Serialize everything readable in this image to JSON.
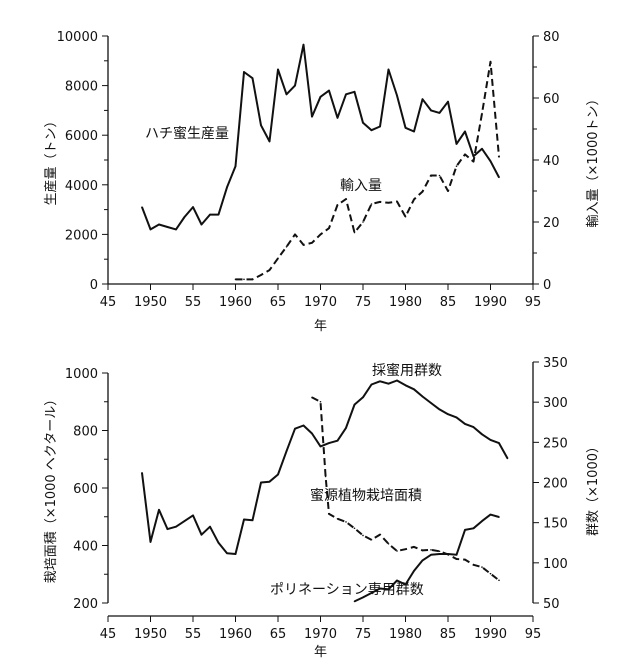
{
  "chart_data": [
    {
      "type": "line",
      "title": "",
      "xlabel": "年",
      "ylabel": "生産量（トン）",
      "y2label": "輸入量（×1000トン）",
      "xlim": [
        1945,
        1995
      ],
      "ylim": [
        0,
        10000
      ],
      "y2lim": [
        0,
        80
      ],
      "xticks": [
        "45",
        "1950",
        "55",
        "1960",
        "65",
        "1970",
        "75",
        "1980",
        "85",
        "1990",
        "95"
      ],
      "yticks": [
        "0",
        "2000",
        "4000",
        "6000",
        "8000",
        "10000"
      ],
      "y2ticks": [
        "0",
        "20",
        "40",
        "60",
        "80"
      ],
      "grid": false,
      "series": [
        {
          "name": "ハチ蜜生産量",
          "axis": "left",
          "style": "solid",
          "x": [
            1949,
            1950,
            1951,
            1952,
            1953,
            1954,
            1955,
            1956,
            1957,
            1958,
            1959,
            1960,
            1961,
            1962,
            1963,
            1964,
            1965,
            1966,
            1967,
            1968,
            1969,
            1970,
            1971,
            1972,
            1973,
            1974,
            1975,
            1976,
            1977,
            1978,
            1979,
            1980,
            1981,
            1982,
            1983,
            1984,
            1985,
            1986,
            1987,
            1988,
            1989,
            1990,
            1991
          ],
          "y": [
            3100,
            2200,
            2400,
            2300,
            2200,
            2700,
            3100,
            2400,
            2800,
            2800,
            3900,
            4750,
            8550,
            8300,
            6400,
            5750,
            8650,
            7650,
            8000,
            9650,
            6750,
            7550,
            7800,
            6700,
            7650,
            7750,
            6500,
            6200,
            6350,
            8650,
            7600,
            6300,
            6150,
            7450,
            7000,
            6900,
            7350,
            5650,
            6150,
            5150,
            5450,
            4950,
            4300
          ]
        },
        {
          "name": "輸入量",
          "axis": "right",
          "style": "dashed",
          "x": [
            1960,
            1961,
            1962,
            1963,
            1964,
            1965,
            1966,
            1967,
            1968,
            1969,
            1970,
            1971,
            1972,
            1973,
            1974,
            1975,
            1976,
            1977,
            1978,
            1979,
            1980,
            1981,
            1982,
            1983,
            1984,
            1985,
            1986,
            1987,
            1988,
            1989,
            1990,
            1991
          ],
          "y": [
            1.5,
            1.5,
            1.5,
            2.9,
            4.5,
            8.3,
            12,
            16,
            12.6,
            13.3,
            16,
            18,
            25.5,
            27.4,
            16.6,
            20,
            25.8,
            26.5,
            26.2,
            26.6,
            21.7,
            27.3,
            29.8,
            35,
            35,
            30,
            38,
            41.8,
            39.5,
            55,
            71.7,
            41
          ]
        }
      ]
    },
    {
      "type": "line",
      "title": "",
      "xlabel": "年",
      "ylabel": "栽培面積（×1000 ヘクタール）",
      "y2label": "群数（×1000）",
      "xlim": [
        1945,
        1995
      ],
      "ylim": [
        200,
        1000
      ],
      "y2lim": [
        50,
        350
      ],
      "xticks": [
        "45",
        "1950",
        "55",
        "1960",
        "65",
        "1970",
        "75",
        "1980",
        "85",
        "1990",
        "95"
      ],
      "yticks": [
        "200",
        "400",
        "600",
        "800",
        "1000"
      ],
      "y2ticks": [
        "50",
        "100",
        "150",
        "200",
        "250",
        "300",
        "350"
      ],
      "grid": false,
      "series": [
        {
          "name": "採蜜用群数",
          "axis": "right",
          "style": "solid",
          "x": [
            1949,
            1950,
            1951,
            1952,
            1953,
            1954,
            1955,
            1956,
            1957,
            1958,
            1959,
            1960,
            1961,
            1962,
            1963,
            1964,
            1965,
            1966,
            1967,
            1968,
            1969,
            1970,
            1971,
            1972,
            1973,
            1974,
            1975,
            1976,
            1977,
            1978,
            1979,
            1980,
            1981,
            1982,
            1983,
            1984,
            1985,
            1986,
            1987,
            1988,
            1989,
            1990,
            1991,
            1992
          ],
          "y": [
            212,
            126,
            166,
            142,
            145,
            152,
            159,
            135,
            145,
            125,
            112,
            111,
            154,
            153,
            200,
            201,
            210,
            239,
            267,
            271,
            261,
            245,
            249,
            252,
            268,
            297,
            306,
            322,
            326,
            323,
            327,
            321,
            316,
            307,
            299,
            291,
            285,
            281,
            273,
            269,
            260,
            253,
            249,
            230
          ]
        },
        {
          "name": "蜜源植物栽培面積",
          "axis": "left",
          "style": "dashed",
          "x": [
            1969,
            1970,
            1970.6,
            1971,
            1972,
            1973,
            1974,
            1975,
            1976,
            1977,
            1978,
            1979,
            1980,
            1981,
            1982,
            1983,
            1984,
            1985,
            1986,
            1987,
            1988,
            1989,
            1990,
            1991
          ],
          "y": [
            915,
            900,
            640,
            510,
            493,
            482,
            460,
            435,
            420,
            438,
            406,
            381,
            387,
            395,
            383,
            385,
            380,
            369,
            353,
            351,
            333,
            325,
            302,
            279
          ]
        },
        {
          "name": "ポリネーション専用群数",
          "axis": "right",
          "style": "solid",
          "x": [
            1974,
            1975,
            1977,
            1978,
            1979,
            1980,
            1981,
            1982,
            1983,
            1984,
            1985,
            1986,
            1987,
            1988,
            1989,
            1990,
            1991
          ],
          "y": [
            52,
            57,
            68,
            67,
            78,
            73,
            90,
            103,
            110,
            111,
            111,
            110,
            141,
            143,
            152,
            160,
            157
          ]
        }
      ]
    }
  ]
}
